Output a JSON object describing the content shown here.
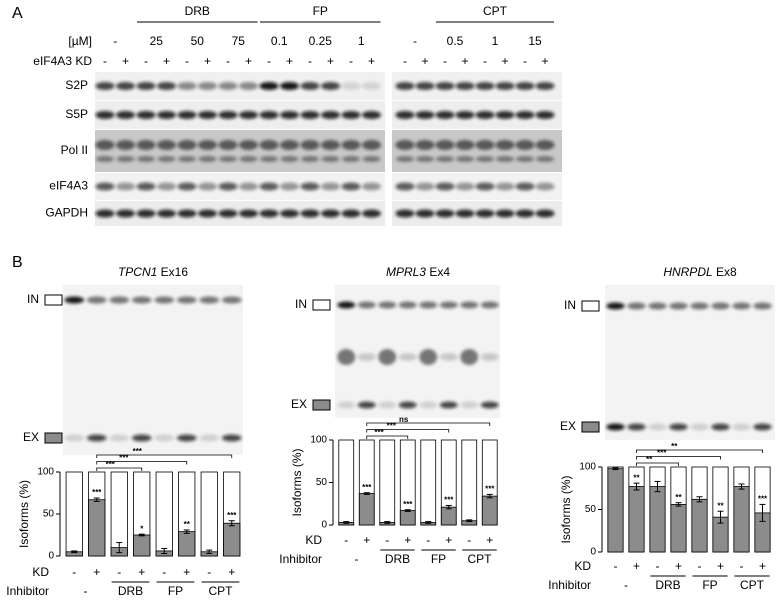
{
  "panels": [
    "A",
    "B"
  ],
  "blot": {
    "conc_unit": "[µM]",
    "kd_label": "eIF4A3 KD",
    "groups": [
      "DRB",
      "FP",
      "CPT"
    ],
    "concentrations": [
      "-",
      "25",
      "50",
      "75",
      "0.1",
      "0.25",
      "1",
      "-",
      "0.5",
      "1",
      "15"
    ],
    "lane_kd": [
      "-",
      "+",
      "-",
      "+",
      "-",
      "+",
      "-",
      "+",
      "-",
      "+",
      "-",
      "+",
      "-",
      "+",
      "-",
      "+",
      "-",
      "+",
      "-",
      "+",
      "-",
      "+"
    ],
    "rows": [
      "S2P",
      "S5P",
      "Pol II",
      "eIF4A3",
      "GAPDH"
    ]
  },
  "chart_data": [
    {
      "type": "bar",
      "title_gene": "TPCN1",
      "title_exon": "Ex16",
      "in_label": "IN",
      "ex_label": "EX",
      "ylabel": "Isoforms (%)",
      "kd_label": "KD",
      "inhibitor_label": "Inhibitor",
      "kd": [
        "-",
        "+",
        "-",
        "+",
        "-",
        "+",
        "-",
        "+"
      ],
      "inhibitors": [
        "-",
        "DRB",
        "FP",
        "CPT"
      ],
      "values": [
        5,
        67,
        10,
        25,
        6,
        29,
        5,
        39
      ],
      "errors": [
        1,
        2,
        6,
        1,
        3,
        2,
        2,
        3
      ],
      "sig_labels": [
        null,
        "***",
        null,
        "*",
        null,
        "**",
        null,
        "***"
      ],
      "comparisons": [
        "***",
        "***",
        "***"
      ],
      "color": "#8c8c8c",
      "ylim": [
        0,
        100
      ],
      "yticks": [
        0,
        50,
        100
      ]
    },
    {
      "type": "bar",
      "title_gene": "MPRL3",
      "title_exon": "Ex4",
      "in_label": "IN",
      "ex_label": "EX",
      "ylabel": "Isoforms (%)",
      "kd_label": "KD",
      "inhibitor_label": "Inhibitor",
      "kd": [
        "-",
        "+",
        "-",
        "+",
        "-",
        "+",
        "-",
        "+"
      ],
      "inhibitors": [
        "-",
        "DRB",
        "FP",
        "CPT"
      ],
      "values": [
        3,
        37,
        3,
        17,
        3,
        21,
        5,
        34
      ],
      "errors": [
        1,
        1,
        1,
        1,
        1,
        2,
        1,
        2
      ],
      "sig_labels": [
        null,
        "***",
        null,
        "***",
        null,
        "***",
        null,
        "***"
      ],
      "comparisons": [
        "***",
        "***",
        "ns"
      ],
      "color": "#8c8c8c",
      "ylim": [
        0,
        100
      ],
      "yticks": [
        0,
        50,
        100
      ]
    },
    {
      "type": "bar",
      "title_gene": "HNRPDL",
      "title_exon": "Ex8",
      "in_label": "IN",
      "ex_label": "EX",
      "ylabel": "Isoforms (%)",
      "kd_label": "KD",
      "inhibitor_label": "Inhibitor",
      "kd": [
        "-",
        "+",
        "-",
        "+",
        "-",
        "+",
        "-",
        "+"
      ],
      "inhibitors": [
        "-",
        "DRB",
        "FP",
        "CPT"
      ],
      "values": [
        98,
        77,
        77,
        56,
        62,
        41,
        77,
        46
      ],
      "errors": [
        1,
        4,
        6,
        2,
        3,
        7,
        3,
        10
      ],
      "sig_labels": [
        null,
        "**",
        null,
        "**",
        null,
        "**",
        null,
        "***"
      ],
      "comparisons": [
        "**",
        "***",
        "**"
      ],
      "color": "#8c8c8c",
      "ylim": [
        0,
        100
      ],
      "yticks": [
        0,
        50,
        100
      ]
    }
  ]
}
